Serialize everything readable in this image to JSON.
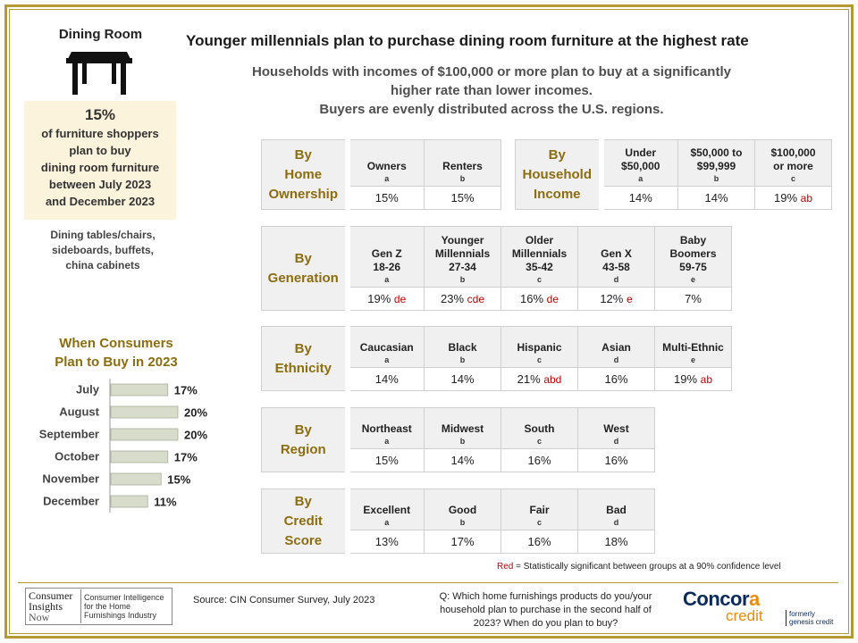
{
  "category": {
    "title": "Dining Room",
    "stat_value": "15%",
    "stat_lines": [
      "of furniture shoppers",
      "plan to buy",
      "dining room furniture",
      "between July 2023",
      "and December 2023"
    ],
    "examples": [
      "Dining tables/chairs,",
      "sideboards, buffets,",
      "china cabinets"
    ],
    "icon": "table-icon"
  },
  "headline": "Younger millennials plan to purchase dining room furniture at the highest rate",
  "subhead": [
    "Households with incomes of $100,000 or more plan to buy at a significantly",
    "higher rate than lower incomes.",
    "Buyers are evenly distributed across the U.S. regions."
  ],
  "chart_data": {
    "type": "bar",
    "title_lines": [
      "When Consumers",
      "Plan to Buy in 2023"
    ],
    "orientation": "horizontal",
    "categories": [
      "July",
      "August",
      "September",
      "October",
      "November",
      "December"
    ],
    "values": [
      17,
      20,
      20,
      17,
      15,
      11
    ],
    "value_labels": [
      "17%",
      "20%",
      "20%",
      "17%",
      "15%",
      "11%"
    ],
    "xlim": [
      0,
      40
    ],
    "bar_color": "#d7dccb",
    "bar_border": "#a9b09a"
  },
  "tables": {
    "home_ownership": {
      "label": [
        "By",
        "Home",
        "Ownership"
      ],
      "columns": [
        {
          "header": [
            "Owners"
          ],
          "letter": "a",
          "value": "15%",
          "sig": ""
        },
        {
          "header": [
            "Renters"
          ],
          "letter": "b",
          "value": "15%",
          "sig": ""
        }
      ]
    },
    "household_income": {
      "label": [
        "By",
        "Household",
        "Income"
      ],
      "columns": [
        {
          "header": [
            "Under",
            "$50,000"
          ],
          "letter": "a",
          "value": "14%",
          "sig": ""
        },
        {
          "header": [
            "$50,000  to",
            "$99,999"
          ],
          "letter": "b",
          "value": "14%",
          "sig": ""
        },
        {
          "header": [
            "$100,000",
            "or more"
          ],
          "letter": "c",
          "value": "19%",
          "sig": "ab"
        }
      ]
    },
    "generation": {
      "label": [
        "By",
        "Generation"
      ],
      "columns": [
        {
          "header": [
            "Gen Z",
            "18-26"
          ],
          "letter": "a",
          "value": "19%",
          "sig": "de"
        },
        {
          "header": [
            "Younger",
            "Millennials",
            "27-34"
          ],
          "letter": "b",
          "value": "23%",
          "sig": "cde"
        },
        {
          "header": [
            "Older",
            "Millennials",
            "35-42"
          ],
          "letter": "c",
          "value": "16%",
          "sig": "de"
        },
        {
          "header": [
            "Gen X",
            "43-58"
          ],
          "letter": "d",
          "value": "12%",
          "sig": "e"
        },
        {
          "header": [
            "Baby",
            "Boomers",
            "59-75"
          ],
          "letter": "e",
          "value": "7%",
          "sig": ""
        }
      ]
    },
    "ethnicity": {
      "label": [
        "By",
        "Ethnicity"
      ],
      "columns": [
        {
          "header": [
            "Caucasian"
          ],
          "letter": "a",
          "value": "14%",
          "sig": ""
        },
        {
          "header": [
            "Black"
          ],
          "letter": "b",
          "value": "14%",
          "sig": ""
        },
        {
          "header": [
            "Hispanic"
          ],
          "letter": "c",
          "value": "21%",
          "sig": "abd"
        },
        {
          "header": [
            "Asian"
          ],
          "letter": "d",
          "value": "16%",
          "sig": ""
        },
        {
          "header": [
            "Multi-Ethnic"
          ],
          "letter": "e",
          "value": "19%",
          "sig": "ab"
        }
      ]
    },
    "region": {
      "label": [
        "By",
        "Region"
      ],
      "columns": [
        {
          "header": [
            "Northeast"
          ],
          "letter": "a",
          "value": "15%",
          "sig": ""
        },
        {
          "header": [
            "Midwest"
          ],
          "letter": "b",
          "value": "14%",
          "sig": ""
        },
        {
          "header": [
            "South"
          ],
          "letter": "c",
          "value": "16%",
          "sig": ""
        },
        {
          "header": [
            "West"
          ],
          "letter": "d",
          "value": "16%",
          "sig": ""
        }
      ]
    },
    "credit_score": {
      "label": [
        "By",
        "Credit",
        "Score"
      ],
      "columns": [
        {
          "header": [
            "Excellent"
          ],
          "letter": "a",
          "value": "13%",
          "sig": ""
        },
        {
          "header": [
            "Good"
          ],
          "letter": "b",
          "value": "17%",
          "sig": ""
        },
        {
          "header": [
            "Fair"
          ],
          "letter": "c",
          "value": "16%",
          "sig": ""
        },
        {
          "header": [
            "Bad"
          ],
          "letter": "d",
          "value": "18%",
          "sig": ""
        }
      ]
    }
  },
  "legend_note": {
    "red_word": "Red",
    "rest": " = Statistically significant between groups at a 90% confidence level"
  },
  "footer": {
    "cin_logo_mark": [
      "Consumer",
      "Insights",
      "Now"
    ],
    "cin_logo_text": [
      "Consumer Intelligence",
      "for the Home",
      "Furnishings Industry"
    ],
    "source": "Source:  CIN Consumer Survey, July 2023",
    "question": [
      "Q: Which home furnishings products do you/your",
      "household plan to purchase in the second half of",
      "2023? When do you plan to buy?"
    ],
    "concora_word_a": "Concor",
    "concora_word_b": "a",
    "concora_credit": "credit",
    "concora_formerly": [
      "formerly",
      "genesis credit"
    ]
  },
  "colors": {
    "gold_border": "#b39a33",
    "label_gold": "#8c6d0f",
    "significance_red": "#c00000",
    "stat_box_bg": "#fbf3dc"
  }
}
